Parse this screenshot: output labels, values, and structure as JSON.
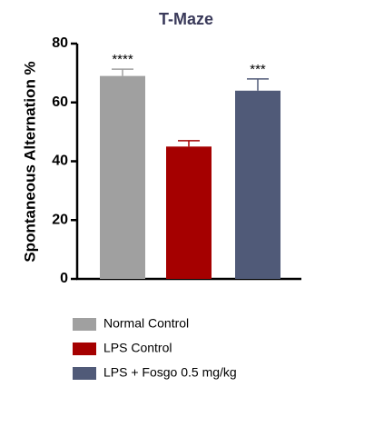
{
  "chart_data": {
    "type": "bar",
    "title": "T-Maze",
    "y_label": "Spontaneous Alternation %",
    "categories": [
      "Normal Control",
      "LPS Control",
      "LPS + Fosgo 0.5 mg/kg"
    ],
    "values": [
      69,
      45,
      64
    ],
    "errors": [
      2.3,
      2,
      4
    ],
    "colors": [
      "#a0a0a0",
      "#a50000",
      "#505a78"
    ],
    "annotations": [
      "****",
      null,
      "***"
    ],
    "ylim": [
      0,
      80
    ],
    "yticks": [
      0,
      20,
      40,
      60,
      80
    ],
    "legend": "bottom"
  }
}
